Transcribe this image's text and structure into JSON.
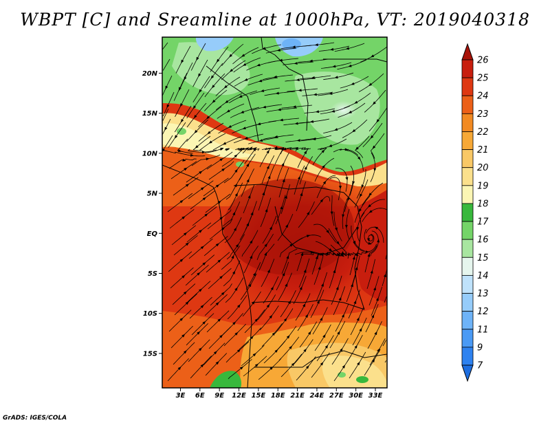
{
  "title": "WBPT [C] and Sreamline at 1000hPa, VT: 2019040318",
  "credit": "GrADS: IGES/COLA",
  "map": {
    "lat_labels": [
      "20N",
      "15N",
      "10N",
      "5N",
      "EQ",
      "5S",
      "10S",
      "15S"
    ],
    "lat_values": [
      20,
      15,
      10,
      5,
      0,
      -5,
      -10,
      -15
    ],
    "lon_labels": [
      "3E",
      "6E",
      "9E",
      "12E",
      "15E",
      "18E",
      "21E",
      "24E",
      "27E",
      "30E",
      "33E"
    ],
    "lon_values": [
      3,
      6,
      9,
      12,
      15,
      18,
      21,
      24,
      27,
      30,
      33
    ],
    "lon_range": [
      0.2,
      34.8
    ],
    "lat_range": [
      -19.3,
      24.5
    ]
  },
  "colorbar": {
    "labels": [
      "7",
      "9",
      "11",
      "12",
      "13",
      "14",
      "15",
      "16",
      "17",
      "18",
      "19",
      "20",
      "21",
      "22",
      "23",
      "24",
      "25",
      "26"
    ],
    "colors": [
      "#1e6ee0",
      "#2e82f0",
      "#4a9af5",
      "#6eb3f8",
      "#96ccfa",
      "#bfe2fb",
      "#e6f6ee",
      "#a8e6a0",
      "#74d468",
      "#38b83c",
      "#fbf6b4",
      "#fbe08c",
      "#f9c866",
      "#f7a836",
      "#f28a22",
      "#ec6018",
      "#de3812",
      "#c81e0e",
      "#a81208"
    ]
  },
  "colors": {
    "frame": "#000000",
    "streamline": "#000000"
  }
}
